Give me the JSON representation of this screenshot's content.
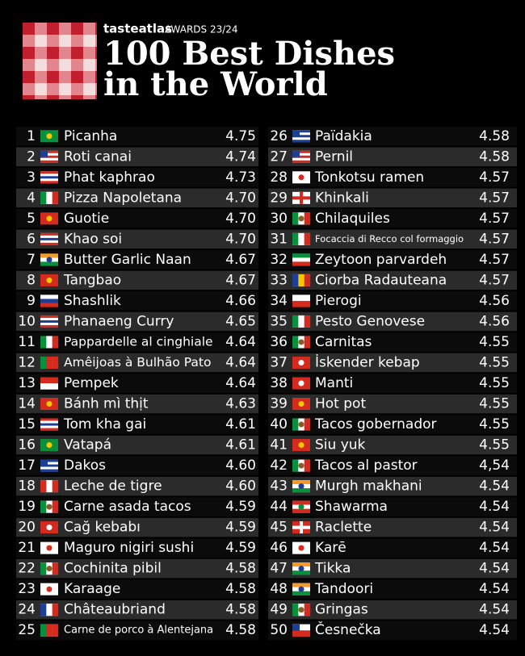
{
  "header": {
    "brand": "tasteatlas",
    "awards": "AWARDS 23/24",
    "title": [
      "100 Best Dishes",
      "in the World"
    ]
  },
  "table": {
    "rows": [
      [
        "1",
        "Picanha",
        "4.75"
      ],
      [
        "2",
        "Roti canai",
        "4.74"
      ],
      [
        "3",
        "Phat kaphrao",
        "4.73"
      ],
      [
        "4",
        "Pizza Napoletana",
        "4.70"
      ],
      [
        "5",
        "Guotie",
        "4.70"
      ],
      [
        "6",
        "Khao soi",
        "4.70"
      ],
      [
        "7",
        "Butter Garlic Naan",
        "4.67"
      ],
      [
        "8",
        "Tangbao",
        "4.67"
      ],
      [
        "9",
        "Shashlik",
        "4.66"
      ],
      [
        "10",
        "Phanaeng Curry",
        "4.65"
      ],
      [
        "11",
        "Pappardelle al cinghiale",
        "4.64"
      ],
      [
        "12",
        "Amêijoas à Bulhão Pato",
        "4.64"
      ],
      [
        "13",
        "Pempek",
        "4.64"
      ],
      [
        "14",
        "Bánh mì thịt",
        "4.63"
      ],
      [
        "15",
        "Tom kha gai",
        "4.61"
      ],
      [
        "16",
        "Vatapá",
        "4.61"
      ],
      [
        "17",
        "Dakos",
        "4.60"
      ],
      [
        "18",
        "Leche de tigre",
        "4.60"
      ],
      [
        "19",
        "Carne asada tacos",
        "4.59"
      ],
      [
        "20",
        "Cağ kebabı",
        "4.59"
      ],
      [
        "21",
        "Maguro nigiri sushi",
        "4.59"
      ],
      [
        "22",
        "Cochinita pibil",
        "4.58"
      ],
      [
        "23",
        "Karaage",
        "4.58"
      ],
      [
        "24",
        "Châteaubriand",
        "4.58"
      ],
      [
        "25",
        "Carne de porco à Alentejana",
        "4.58"
      ],
      [
        "26",
        "Païdakia",
        "4.58"
      ],
      [
        "27",
        "Pernil",
        "4.58"
      ],
      [
        "28",
        "Tonkotsu ramen",
        "4.57"
      ],
      [
        "29",
        "Khinkali",
        "4.57"
      ],
      [
        "30",
        "Chilaquiles",
        "4.57"
      ],
      [
        "31",
        "Focaccia di Recco col formaggio",
        "4.57"
      ],
      [
        "32",
        "Zeytoon parvardeh",
        "4.57"
      ],
      [
        "33",
        "Ciorba Radauteana",
        "4.57"
      ],
      [
        "34",
        "Pierogi",
        "4.56"
      ],
      [
        "35",
        "Pesto Genovese",
        "4.56"
      ],
      [
        "36",
        "Carnitas",
        "4.55"
      ],
      [
        "37",
        "İskender kebap",
        "4.55"
      ],
      [
        "38",
        "Manti",
        "4.55"
      ],
      [
        "39",
        "Hot pot",
        "4.55"
      ],
      [
        "40",
        "Tacos gobernador",
        "4.55"
      ],
      [
        "41",
        "Siu yuk",
        "4.55"
      ],
      [
        "42",
        "Tacos al pastor",
        "4,54"
      ],
      [
        "43",
        "Murgh makhani",
        "4.54"
      ],
      [
        "44",
        "Shawarma",
        "4.54"
      ],
      [
        "45",
        "Raclette",
        "4.54"
      ],
      [
        "46",
        "Karē",
        "4.54"
      ],
      [
        "47",
        "Tikka",
        "4.54"
      ],
      [
        "48",
        "Tandoori",
        "4.54"
      ],
      [
        "49",
        "Gringas",
        "4.54"
      ],
      [
        "50",
        "Česnečka",
        "4.54"
      ]
    ]
  }
}
